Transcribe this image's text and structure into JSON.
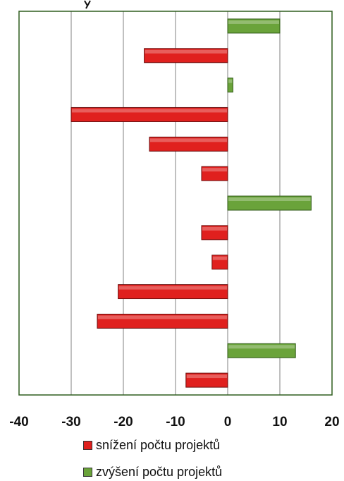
{
  "chart_data": {
    "type": "bar",
    "orientation": "horizontal",
    "xlim": [
      -40,
      20
    ],
    "x_ticks": [
      "-40",
      "-30",
      "-20",
      "-10",
      "0",
      "10",
      "20"
    ],
    "x_tick_values": [
      -40,
      -30,
      -20,
      -10,
      0,
      10,
      20
    ],
    "grid": true,
    "values": [
      10,
      -16,
      1,
      -30,
      -15,
      -5,
      16,
      -5,
      -3,
      -21,
      -25,
      13,
      -8
    ],
    "series": [
      {
        "name": "snížení počtu projektů",
        "color": "#e0201e"
      },
      {
        "name": "zvýšení počtu projektů",
        "color": "#6aa33a"
      }
    ],
    "legend_position": "bottom"
  },
  "colors": {
    "decrease": "#e0201e",
    "increase": "#6aa33a",
    "frame": "#2e5d1e",
    "grid": "#808080"
  }
}
